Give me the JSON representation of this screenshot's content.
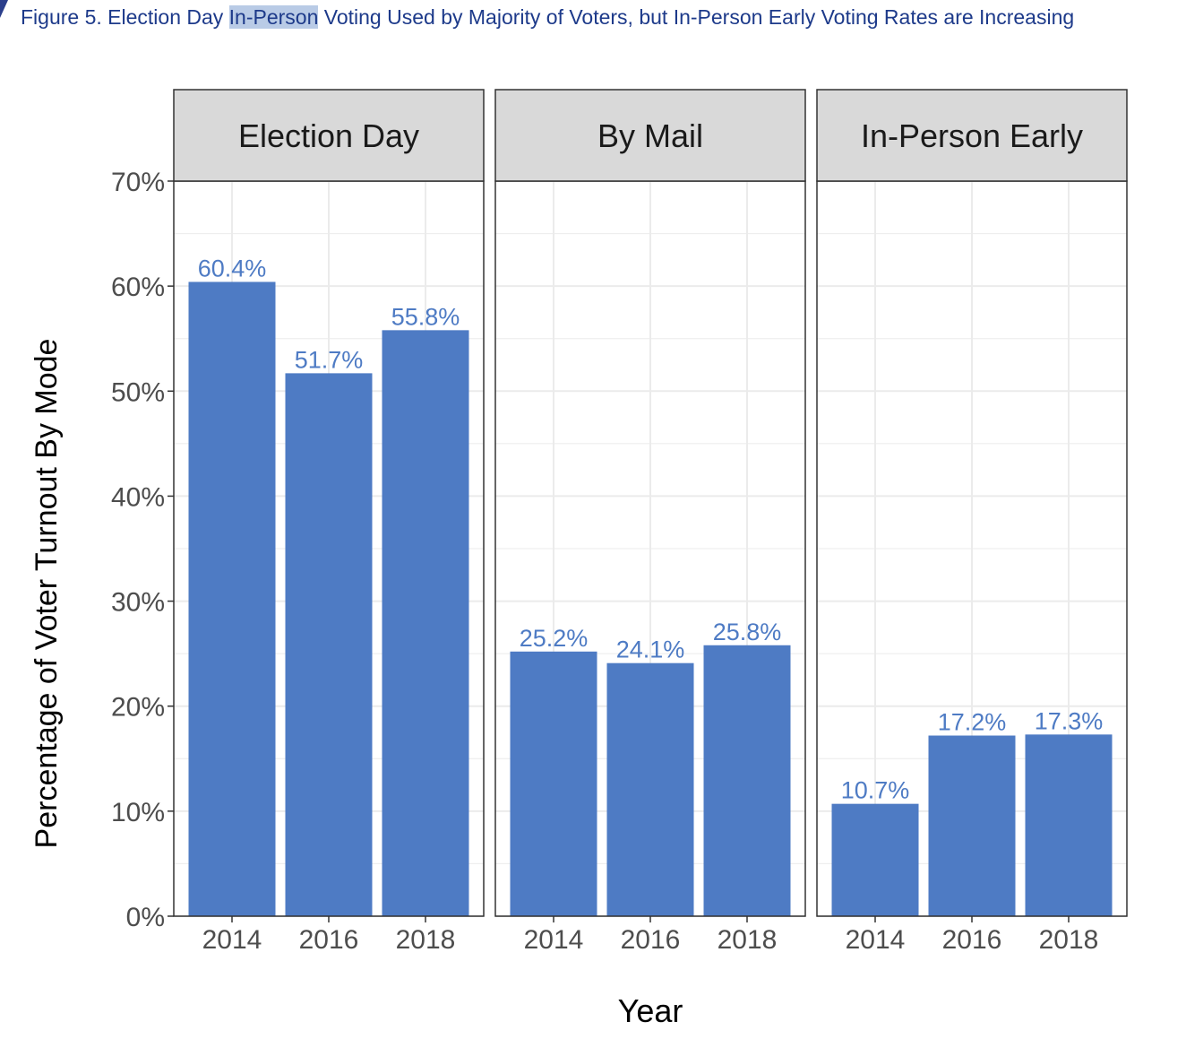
{
  "figure_caption": {
    "before": "Figure 5. Election Day ",
    "highlight": "In-Person",
    "after": " Voting Used by Majority of Voters, but In-Person Early Voting Rates are Increasing"
  },
  "colors": {
    "bar": "#4e7bc4",
    "data_label": "#4e7bc4",
    "strip_background": "#d9d9d9",
    "caption": "#1d3a8a",
    "gridline": "#ebebeb"
  },
  "chart_data": {
    "type": "bar",
    "title": "",
    "xlabel": "Year",
    "ylabel": "Percentage of Voter Turnout By Mode",
    "ylim": [
      0,
      70
    ],
    "yticks": [
      "0%",
      "10%",
      "20%",
      "30%",
      "40%",
      "50%",
      "60%",
      "70%"
    ],
    "grid": true,
    "facets": [
      {
        "name": "Election Day",
        "categories": [
          "2014",
          "2016",
          "2018"
        ],
        "values": [
          60.4,
          51.7,
          55.8
        ],
        "labels": [
          "60.4%",
          "51.7%",
          "55.8%"
        ]
      },
      {
        "name": "By Mail",
        "categories": [
          "2014",
          "2016",
          "2018"
        ],
        "values": [
          25.2,
          24.1,
          25.8
        ],
        "labels": [
          "25.2%",
          "24.1%",
          "25.8%"
        ]
      },
      {
        "name": "In-Person Early",
        "categories": [
          "2014",
          "2016",
          "2018"
        ],
        "values": [
          10.7,
          17.2,
          17.3
        ],
        "labels": [
          "10.7%",
          "17.2%",
          "17.3%"
        ]
      }
    ]
  }
}
